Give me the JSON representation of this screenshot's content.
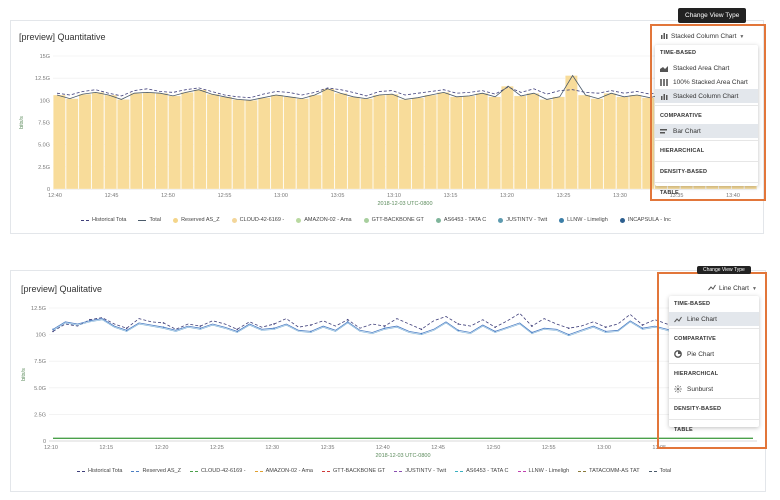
{
  "panel1": {
    "title": "[preview] Quantitative",
    "view_type_label": "Stacked Column Chart",
    "tooltip": "Change View Type",
    "menu": [
      {
        "header": "TIME-BASED",
        "items": [
          {
            "label": "Stacked Area Chart",
            "icon": "area-chart-icon",
            "selected": false
          },
          {
            "label": "100% Stacked Area Chart",
            "icon": "stacked-area-100-icon",
            "selected": false
          },
          {
            "label": "Stacked Column Chart",
            "icon": "stacked-column-icon",
            "selected": true
          }
        ]
      },
      {
        "header": "COMPARATIVE",
        "items": [
          {
            "label": "Bar Chart",
            "icon": "bar-chart-icon",
            "selected": true
          }
        ]
      },
      {
        "header": "HIERARCHICAL",
        "items": []
      },
      {
        "header": "DENSITY-BASED",
        "items": []
      },
      {
        "header": "TABLE",
        "items": []
      }
    ],
    "legend": [
      {
        "label": "Historical Tota",
        "style": "dash",
        "color": "#3f3f7a"
      },
      {
        "label": "Total",
        "style": "line",
        "color": "#4a5a6a"
      },
      {
        "label": "Reserved AS_Z",
        "style": "dot",
        "color": "#f4d58a"
      },
      {
        "label": "CLOUD-42-6169 -",
        "style": "dot",
        "color": "#f3d69a"
      },
      {
        "label": "AMAZON-02 - Ama",
        "style": "dot",
        "color": "#b9d9a0"
      },
      {
        "label": "GTT-BACKBONE GT",
        "style": "dot",
        "color": "#a8cf9e"
      },
      {
        "label": "AS6453 - TATA C",
        "style": "dot",
        "color": "#7fb59b"
      },
      {
        "label": "JUSTINTV - Twit",
        "style": "dot",
        "color": "#5e9bb0"
      },
      {
        "label": "LLNW - Limeligh",
        "style": "dot",
        "color": "#3c7fa8"
      },
      {
        "label": "INCAPSULA - Inc",
        "style": "dot",
        "color": "#2d5f8f"
      }
    ]
  },
  "panel2": {
    "title": "[preview] Qualitative",
    "view_type_label": "Line Chart",
    "menu": [
      {
        "header": "TIME-BASED",
        "items": [
          {
            "label": "Line Chart",
            "icon": "line-chart-icon",
            "selected": true
          }
        ]
      },
      {
        "header": "COMPARATIVE",
        "items": [
          {
            "label": "Pie Chart",
            "icon": "pie-chart-icon",
            "selected": false
          }
        ]
      },
      {
        "header": "HIERARCHICAL",
        "items": [
          {
            "label": "Sunburst",
            "icon": "sunburst-icon",
            "selected": false
          }
        ]
      },
      {
        "header": "DENSITY-BASED",
        "items": []
      },
      {
        "header": "TABLE",
        "items": []
      }
    ],
    "legend": [
      {
        "label": "Historical Tota",
        "style": "dash",
        "color": "#3f3f7a"
      },
      {
        "label": "Reserved AS_Z",
        "style": "dash",
        "color": "#4d7fc4"
      },
      {
        "label": "CLOUD-42-6169 -",
        "style": "dash",
        "color": "#4aa04a"
      },
      {
        "label": "AMAZON-02 - Ama",
        "style": "dash",
        "color": "#e0a030"
      },
      {
        "label": "GTT-BACKBONE GT",
        "style": "dash",
        "color": "#d03a3a"
      },
      {
        "label": "JUSTINTV - Twit",
        "style": "dash",
        "color": "#8a4fb0"
      },
      {
        "label": "AS6453 - TATA C",
        "style": "dash",
        "color": "#3ab0c0"
      },
      {
        "label": "LLNW - Limeligh",
        "style": "dash",
        "color": "#c040b0"
      },
      {
        "label": "TATACOMM-AS TAT",
        "style": "dash",
        "color": "#8a7a3a"
      },
      {
        "label": "Total",
        "style": "dash",
        "color": "#4a5a6a"
      }
    ]
  },
  "chart_data": [
    {
      "type": "bar",
      "title": "[preview] Quantitative",
      "xlabel": "2018-12-03 UTC-0800",
      "ylabel": "bits/s",
      "y_ticks": [
        "0",
        "2.5G",
        "5.0G",
        "7.5G",
        "10G",
        "12.5G",
        "15G"
      ],
      "y_tick_values": [
        0,
        2.5,
        5,
        7.5,
        10,
        12.5,
        15
      ],
      "ylim": [
        0,
        15
      ],
      "x_ticks": [
        "12:40",
        "12:45",
        "12:50",
        "12:55",
        "13:00",
        "13:05",
        "13:10",
        "13:15",
        "13:20",
        "13:25",
        "13:30",
        "13:35",
        "13:40"
      ],
      "bar_values": [
        10.6,
        10.2,
        10.7,
        10.9,
        10.6,
        10.1,
        10.8,
        10.9,
        10.8,
        10.5,
        10.9,
        11.2,
        10.7,
        10.4,
        10.1,
        10.0,
        10.3,
        10.6,
        10.4,
        10.2,
        10.6,
        11.3,
        10.8,
        10.4,
        10.2,
        10.6,
        10.7,
        10.1,
        10.3,
        10.6,
        10.9,
        10.4,
        10.5,
        10.8,
        10.4,
        11.6,
        10.5,
        10.8,
        10.1,
        10.4,
        12.8,
        10.6,
        10.2,
        10.8,
        10.4,
        10.6,
        10.3,
        10.7,
        10.4,
        10.1,
        10.2,
        10.6,
        10.4,
        10.8,
        10.3
      ],
      "series": [
        {
          "name": "Historical Tota",
          "values": [
            10.8,
            10.6,
            11.0,
            11.2,
            10.8,
            10.5,
            11.1,
            11.3,
            11.0,
            10.9,
            11.2,
            11.4,
            11.0,
            10.6,
            10.4,
            10.3,
            10.7,
            11.0,
            10.9,
            10.6,
            10.9,
            11.4,
            11.2,
            10.9,
            10.5,
            11.0,
            11.1,
            10.6,
            10.8,
            11.0,
            11.2,
            10.8,
            10.9,
            11.1,
            10.7,
            11.5,
            10.9,
            11.3,
            10.7,
            11.1,
            11.2,
            10.9,
            10.8,
            11.1,
            10.8,
            11.0,
            10.7,
            11.0,
            10.6,
            10.4,
            10.6,
            10.9,
            10.8,
            11.1,
            10.6
          ]
        },
        {
          "name": "Total",
          "values": [
            10.6,
            10.2,
            10.7,
            10.9,
            10.6,
            10.1,
            10.8,
            10.9,
            10.8,
            10.5,
            10.9,
            11.2,
            10.7,
            10.4,
            10.1,
            10.0,
            10.3,
            10.6,
            10.4,
            10.2,
            10.6,
            11.3,
            10.8,
            10.4,
            10.2,
            10.6,
            10.7,
            10.1,
            10.3,
            10.6,
            10.9,
            10.4,
            10.5,
            10.8,
            10.4,
            11.6,
            10.5,
            10.8,
            10.1,
            10.4,
            12.8,
            10.6,
            10.2,
            10.8,
            10.4,
            10.6,
            10.3,
            10.7,
            10.4,
            10.1,
            10.2,
            10.6,
            10.4,
            10.8,
            10.3
          ]
        }
      ]
    },
    {
      "type": "line",
      "title": "[preview] Qualitative",
      "xlabel": "2018-12-03 UTC-0800",
      "ylabel": "bits/s",
      "y_ticks": [
        "0",
        "2.5G",
        "5.0G",
        "7.5G",
        "10G",
        "12.5G"
      ],
      "y_tick_values": [
        0,
        2.5,
        5,
        7.5,
        10,
        12.5
      ],
      "ylim": [
        0,
        12.5
      ],
      "x_ticks": [
        "12:10",
        "12:15",
        "12:20",
        "12:25",
        "12:30",
        "12:35",
        "12:40",
        "12:45",
        "12:50",
        "12:55",
        "13:00",
        "13:05"
      ],
      "series": [
        {
          "name": "Historical Tota",
          "values": [
            10.3,
            11.0,
            10.8,
            11.4,
            11.6,
            11.0,
            10.6,
            11.5,
            11.2,
            11.1,
            10.5,
            11.0,
            10.8,
            11.3,
            11.0,
            10.5,
            11.2,
            10.7,
            11.0,
            11.5,
            10.7,
            10.9,
            11.3,
            10.8,
            11.4,
            10.6,
            11.0,
            10.8,
            11.5,
            11.0,
            10.5,
            11.3,
            11.7,
            11.0,
            10.8,
            11.4,
            10.7,
            11.3,
            12.0,
            10.8,
            11.5,
            11.0,
            10.6,
            10.8,
            11.2,
            10.7,
            11.0,
            11.9,
            10.9,
            11.4,
            11.0,
            10.6,
            10.9,
            11.6,
            11.3,
            10.7,
            11.0,
            11.1
          ]
        },
        {
          "name": "Total",
          "values": [
            10.5,
            11.2,
            11.0,
            11.3,
            11.5,
            10.8,
            10.4,
            11.1,
            10.9,
            10.7,
            10.4,
            10.8,
            10.6,
            11.0,
            10.7,
            10.3,
            11.0,
            10.5,
            10.6,
            11.0,
            10.4,
            10.3,
            10.8,
            10.4,
            11.2,
            10.4,
            10.2,
            10.6,
            10.8,
            10.3,
            10.1,
            10.5,
            11.2,
            10.4,
            10.2,
            10.9,
            10.3,
            10.7,
            11.1,
            10.2,
            10.6,
            10.5,
            10.0,
            10.4,
            10.8,
            10.3,
            10.4,
            11.3,
            10.6,
            10.8,
            10.5,
            10.1,
            10.7,
            11.5,
            10.9,
            10.3,
            10.6,
            10.8
          ]
        },
        {
          "name": "Reserved AS_Z",
          "values": [
            0.25,
            0.25,
            0.25,
            0.25,
            0.25,
            0.25,
            0.25,
            0.25,
            0.25,
            0.25,
            0.25,
            0.25,
            0.25,
            0.25,
            0.25,
            0.25,
            0.25,
            0.25,
            0.25,
            0.25,
            0.25,
            0.25,
            0.25,
            0.25,
            0.25,
            0.25,
            0.25,
            0.25,
            0.25,
            0.25,
            0.25,
            0.25,
            0.25,
            0.25,
            0.25,
            0.25,
            0.25,
            0.25,
            0.25,
            0.25,
            0.25,
            0.25,
            0.25,
            0.25,
            0.25,
            0.25,
            0.25,
            0.25,
            0.25,
            0.25,
            0.25,
            0.25,
            0.25,
            0.25,
            0.25,
            0.25,
            0.25,
            0.25
          ]
        }
      ]
    }
  ]
}
